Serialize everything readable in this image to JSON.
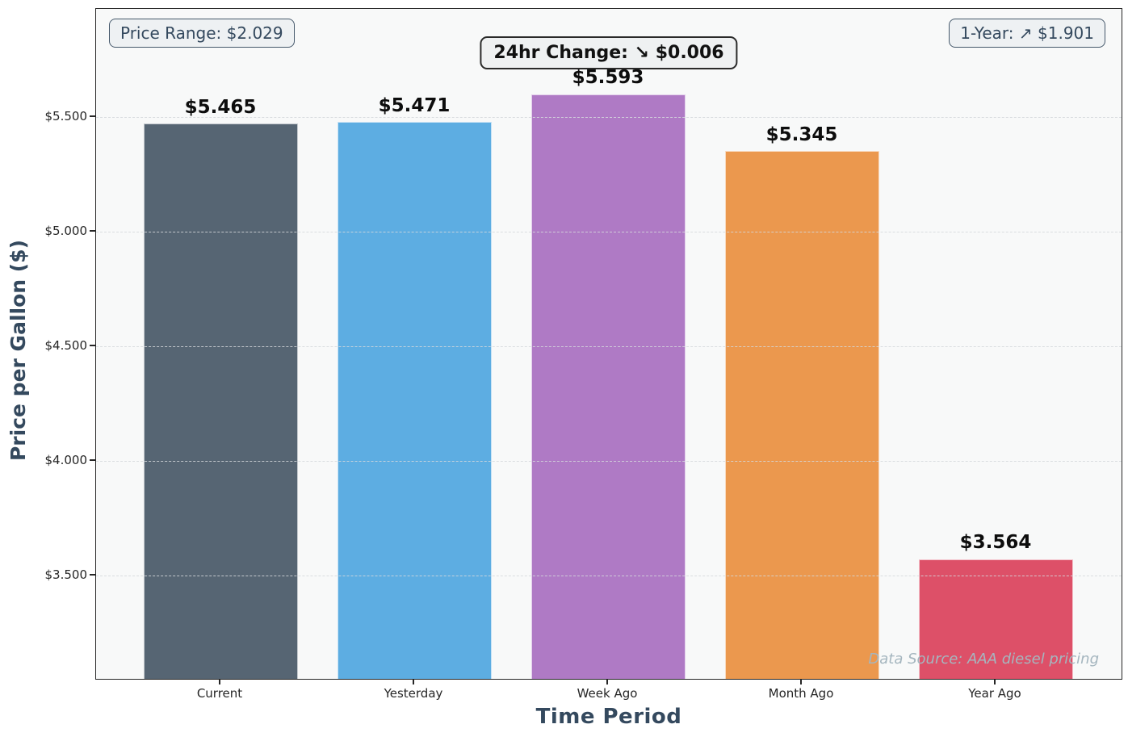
{
  "chart_data": {
    "type": "bar",
    "categories": [
      "Current",
      "Yesterday",
      "Week Ago",
      "Month Ago",
      "Year Ago"
    ],
    "values": [
      5.465,
      5.471,
      5.593,
      5.345,
      3.564
    ],
    "bar_labels": [
      "$5.465",
      "$5.471",
      "$5.593",
      "$5.345",
      "$3.564"
    ],
    "bar_colors": [
      "#566573",
      "#5dade2",
      "#af7ac5",
      "#eb984e",
      "#dd5068"
    ],
    "title": "",
    "xlabel": "Time Period",
    "ylabel": "Price per Gallon ($)",
    "ylim": [
      3.042,
      5.972
    ],
    "yticks": [
      {
        "value": 5.5,
        "label": "$5.500"
      },
      {
        "value": 5.0,
        "label": "$5.000"
      },
      {
        "value": 4.5,
        "label": "$4.500"
      },
      {
        "value": 4.0,
        "label": "$4.000"
      },
      {
        "value": 3.5,
        "label": "$3.500"
      }
    ],
    "grid": {
      "axis": "y",
      "style": "dashed",
      "color": "#d5d8dc",
      "above_bars": true
    },
    "legend": "none",
    "annotations": {
      "price_range": {
        "text": "Price Range: $2.029"
      },
      "change_24hr": {
        "text": "24hr Change: ↘ $0.006"
      },
      "one_year": {
        "text": "1-Year: ↗ $1.901"
      },
      "data_source": {
        "text": "Data Source: AAA diesel pricing"
      }
    },
    "colors": {
      "figure_bg": "#ffffff",
      "plot_bg": "#f8f9f9",
      "spine": "#262626",
      "tick_label": "#262626",
      "value_label": "#0d0d0d",
      "axis_label": "#34495e",
      "annotation_text": "#34495e",
      "annotation_bg": "#eef1f3",
      "annotation_border": "#45586b",
      "change_box_text": "#111111",
      "change_box_bg": "#eff1f2",
      "change_box_border": "#2a2a2a",
      "data_source_text": "#a5b6bf",
      "grid": "#d5d8dc"
    }
  }
}
